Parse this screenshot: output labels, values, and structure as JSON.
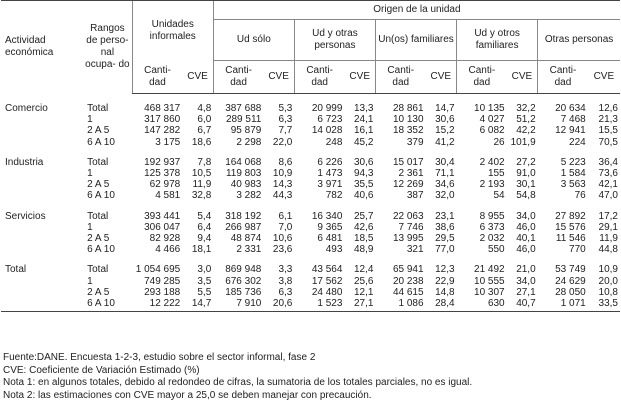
{
  "header": {
    "activity": "Actividad económica",
    "ranges": "Rangos de perso- nal ocupa- do",
    "units": "Unidades informales",
    "origin": "Origen de la unidad",
    "groups": [
      "Ud sólo",
      "Ud y otras personas",
      "Un(os) familiares",
      "Ud y otros familiares",
      "Otras personas"
    ],
    "quantity": "Canti- dad",
    "cve": "CVE"
  },
  "table": {
    "groups": [
      {
        "activity": "Comercio",
        "rows": [
          {
            "range": "Total",
            "values": [
              "468 317",
              "4,8",
              "387 688",
              "5,3",
              "20 999",
              "13,3",
              "28 861",
              "14,7",
              "10 135",
              "32,2",
              "20 634",
              "12,6"
            ]
          },
          {
            "range": "1",
            "values": [
              "317 860",
              "6,0",
              "289 511",
              "6,3",
              "6 723",
              "24,1",
              "10 130",
              "30,6",
              "4 027",
              "51,2",
              "7 468",
              "21,3"
            ]
          },
          {
            "range": "2 A 5",
            "values": [
              "147 282",
              "6,7",
              "95 879",
              "7,7",
              "14 028",
              "16,1",
              "18 352",
              "15,2",
              "6 082",
              "42,2",
              "12 941",
              "15,5"
            ]
          },
          {
            "range": "6 A 10",
            "values": [
              "3 175",
              "18,6",
              "2 298",
              "22,0",
              "248",
              "45,2",
              "379",
              "41,2",
              "26",
              "101,9",
              "224",
              "70,5"
            ]
          }
        ]
      },
      {
        "activity": "Industria",
        "rows": [
          {
            "range": "Total",
            "values": [
              "192 937",
              "7,8",
              "164 068",
              "8,6",
              "6 226",
              "30,6",
              "15 017",
              "30,4",
              "2 402",
              "27,2",
              "5 223",
              "36,4"
            ]
          },
          {
            "range": "1",
            "values": [
              "125 378",
              "10,5",
              "119 803",
              "10,9",
              "1 473",
              "94,3",
              "2 361",
              "71,1",
              "155",
              "91,0",
              "1 584",
              "73,6"
            ]
          },
          {
            "range": "2 A 5",
            "values": [
              "62 978",
              "11,9",
              "40 983",
              "14,3",
              "3 971",
              "35,5",
              "12 269",
              "34,6",
              "2 193",
              "30,1",
              "3 563",
              "42,1"
            ]
          },
          {
            "range": "6 A 10",
            "values": [
              "4 581",
              "32,8",
              "3 282",
              "44,3",
              "782",
              "40,6",
              "387",
              "32,0",
              "54",
              "54,8",
              "76",
              "47,0"
            ]
          }
        ]
      },
      {
        "activity": "Servicios",
        "rows": [
          {
            "range": "Total",
            "values": [
              "393 441",
              "5,4",
              "318 192",
              "6,1",
              "16 340",
              "25,7",
              "22 063",
              "23,1",
              "8 955",
              "34,0",
              "27 892",
              "17,2"
            ]
          },
          {
            "range": "1",
            "values": [
              "306 047",
              "6,4",
              "266 987",
              "7,0",
              "9 365",
              "42,6",
              "7 746",
              "38,6",
              "6 373",
              "46,0",
              "15 576",
              "29,1"
            ]
          },
          {
            "range": "2 A 5",
            "values": [
              "82 928",
              "9,4",
              "48 874",
              "10,6",
              "6 481",
              "18,5",
              "13 995",
              "29,5",
              "2 032",
              "40,1",
              "11 546",
              "11,9"
            ]
          },
          {
            "range": "6 A 10",
            "values": [
              "4 466",
              "18,1",
              "2 331",
              "23,6",
              "493",
              "48,9",
              "321",
              "77,0",
              "550",
              "46,0",
              "770",
              "44,8"
            ]
          }
        ]
      },
      {
        "activity": "Total",
        "rows": [
          {
            "range": "Total",
            "values": [
              "1 054 695",
              "3,0",
              "869 948",
              "3,3",
              "43 564",
              "12,4",
              "65 941",
              "12,3",
              "21 492",
              "21,0",
              "53 749",
              "10,9"
            ]
          },
          {
            "range": "1",
            "values": [
              "749 285",
              "3,5",
              "676 302",
              "3,8",
              "17 562",
              "25,6",
              "20 238",
              "22,9",
              "10 555",
              "34,0",
              "24 629",
              "20,0"
            ]
          },
          {
            "range": "2 A 5",
            "values": [
              "293 188",
              "5,5",
              "185 736",
              "6,3",
              "24 480",
              "12,1",
              "44 615",
              "14,8",
              "10 307",
              "27,1",
              "28 050",
              "10,8"
            ]
          },
          {
            "range": "6 A 10",
            "values": [
              "12 222",
              "14,7",
              "7 910",
              "20,6",
              "1 523",
              "27,1",
              "1 086",
              "28,4",
              "630",
              "40,7",
              "1 071",
              "33,5"
            ]
          }
        ]
      }
    ]
  },
  "notes": [
    "Fuente:DANE. Encuesta 1-2-3, estudio sobre el sector informal, fase 2",
    "CVE: Coeficiente de Variación Estimado (%)",
    "Nota 1: en algunos totales, debido al redondeo de cifras, la sumatoria de los totales parciales, no es igual.",
    "Nota 2: las estimaciones con CVE mayor a 25,0 se deben manejar con precaución."
  ]
}
